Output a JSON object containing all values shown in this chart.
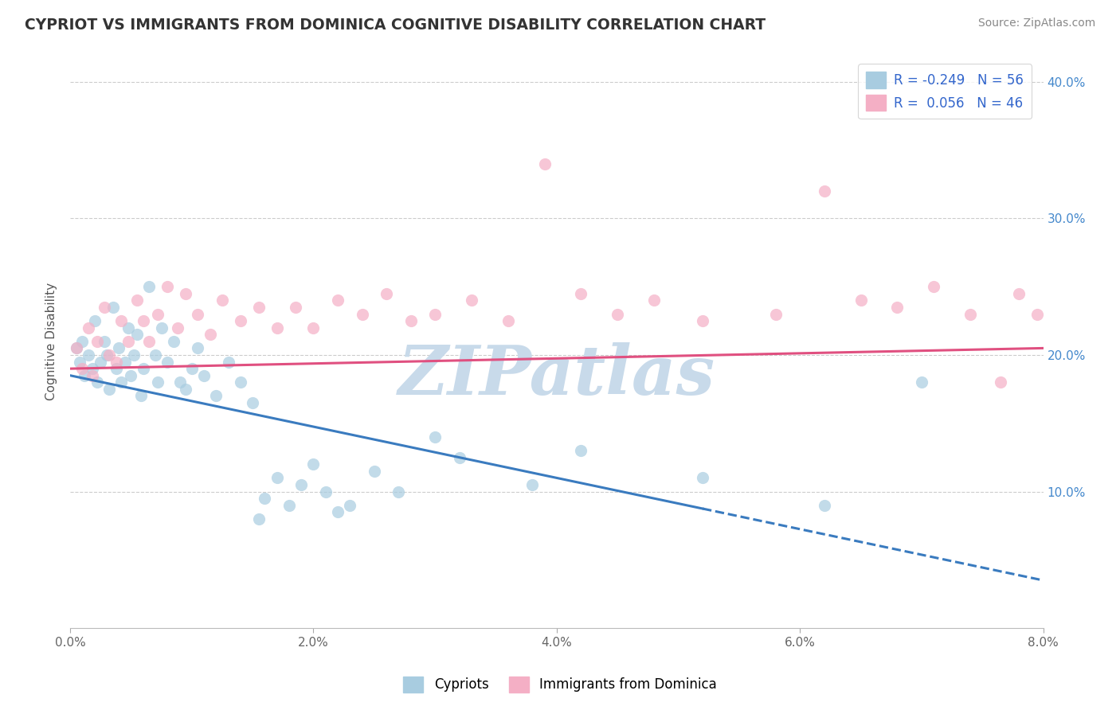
{
  "title": "CYPRIOT VS IMMIGRANTS FROM DOMINICA COGNITIVE DISABILITY CORRELATION CHART",
  "source": "Source: ZipAtlas.com",
  "ylabel": "Cognitive Disability",
  "cypriot_R": -0.249,
  "cypriot_N": 56,
  "dominica_R": 0.056,
  "dominica_N": 46,
  "cypriot_color": "#a8cce0",
  "dominica_color": "#f4afc5",
  "cypriot_line_color": "#3a7bbf",
  "dominica_line_color": "#e05080",
  "watermark": "ZIPatlas",
  "watermark_color": "#c8daea",
  "xlim": [
    0.0,
    8.0
  ],
  "ylim": [
    0.0,
    42.0
  ],
  "yticks": [
    10.0,
    20.0,
    30.0,
    40.0
  ],
  "xticks": [
    0.0,
    2.0,
    4.0,
    6.0,
    8.0
  ],
  "legend_label_1": "Cypriots",
  "legend_label_2": "Immigrants from Dominica",
  "cypriot_line_x0": 0.0,
  "cypriot_line_y0": 18.5,
  "cypriot_line_x1": 8.0,
  "cypriot_line_y1": 3.5,
  "dominica_line_x0": 0.0,
  "dominica_line_y0": 19.0,
  "dominica_line_x1": 8.0,
  "dominica_line_y1": 20.5,
  "cypriot_solid_end": 5.2,
  "cypriot_x": [
    0.05,
    0.08,
    0.1,
    0.12,
    0.15,
    0.18,
    0.2,
    0.22,
    0.25,
    0.28,
    0.3,
    0.32,
    0.35,
    0.38,
    0.4,
    0.42,
    0.45,
    0.48,
    0.5,
    0.52,
    0.55,
    0.58,
    0.6,
    0.65,
    0.7,
    0.72,
    0.75,
    0.8,
    0.85,
    0.9,
    0.95,
    1.0,
    1.05,
    1.1,
    1.2,
    1.3,
    1.4,
    1.5,
    1.55,
    1.6,
    1.7,
    1.8,
    1.9,
    2.0,
    2.1,
    2.2,
    2.3,
    2.5,
    2.7,
    3.0,
    3.2,
    3.8,
    4.2,
    5.2,
    6.2,
    7.0
  ],
  "cypriot_y": [
    20.5,
    19.5,
    21.0,
    18.5,
    20.0,
    19.0,
    22.5,
    18.0,
    19.5,
    21.0,
    20.0,
    17.5,
    23.5,
    19.0,
    20.5,
    18.0,
    19.5,
    22.0,
    18.5,
    20.0,
    21.5,
    17.0,
    19.0,
    25.0,
    20.0,
    18.0,
    22.0,
    19.5,
    21.0,
    18.0,
    17.5,
    19.0,
    20.5,
    18.5,
    17.0,
    19.5,
    18.0,
    16.5,
    8.0,
    9.5,
    11.0,
    9.0,
    10.5,
    12.0,
    10.0,
    8.5,
    9.0,
    11.5,
    10.0,
    14.0,
    12.5,
    10.5,
    13.0,
    11.0,
    9.0,
    18.0
  ],
  "dominica_x": [
    0.05,
    0.1,
    0.15,
    0.18,
    0.22,
    0.28,
    0.32,
    0.38,
    0.42,
    0.48,
    0.55,
    0.6,
    0.65,
    0.72,
    0.8,
    0.88,
    0.95,
    1.05,
    1.15,
    1.25,
    1.4,
    1.55,
    1.7,
    1.85,
    2.0,
    2.2,
    2.4,
    2.6,
    2.8,
    3.0,
    3.3,
    3.6,
    3.9,
    4.2,
    4.5,
    4.8,
    5.2,
    5.8,
    6.2,
    6.5,
    6.8,
    7.1,
    7.4,
    7.65,
    7.8,
    7.95
  ],
  "dominica_y": [
    20.5,
    19.0,
    22.0,
    18.5,
    21.0,
    23.5,
    20.0,
    19.5,
    22.5,
    21.0,
    24.0,
    22.5,
    21.0,
    23.0,
    25.0,
    22.0,
    24.5,
    23.0,
    21.5,
    24.0,
    22.5,
    23.5,
    22.0,
    23.5,
    22.0,
    24.0,
    23.0,
    24.5,
    22.5,
    23.0,
    24.0,
    22.5,
    34.0,
    24.5,
    23.0,
    24.0,
    22.5,
    23.0,
    32.0,
    24.0,
    23.5,
    25.0,
    23.0,
    18.0,
    24.5,
    23.0
  ]
}
